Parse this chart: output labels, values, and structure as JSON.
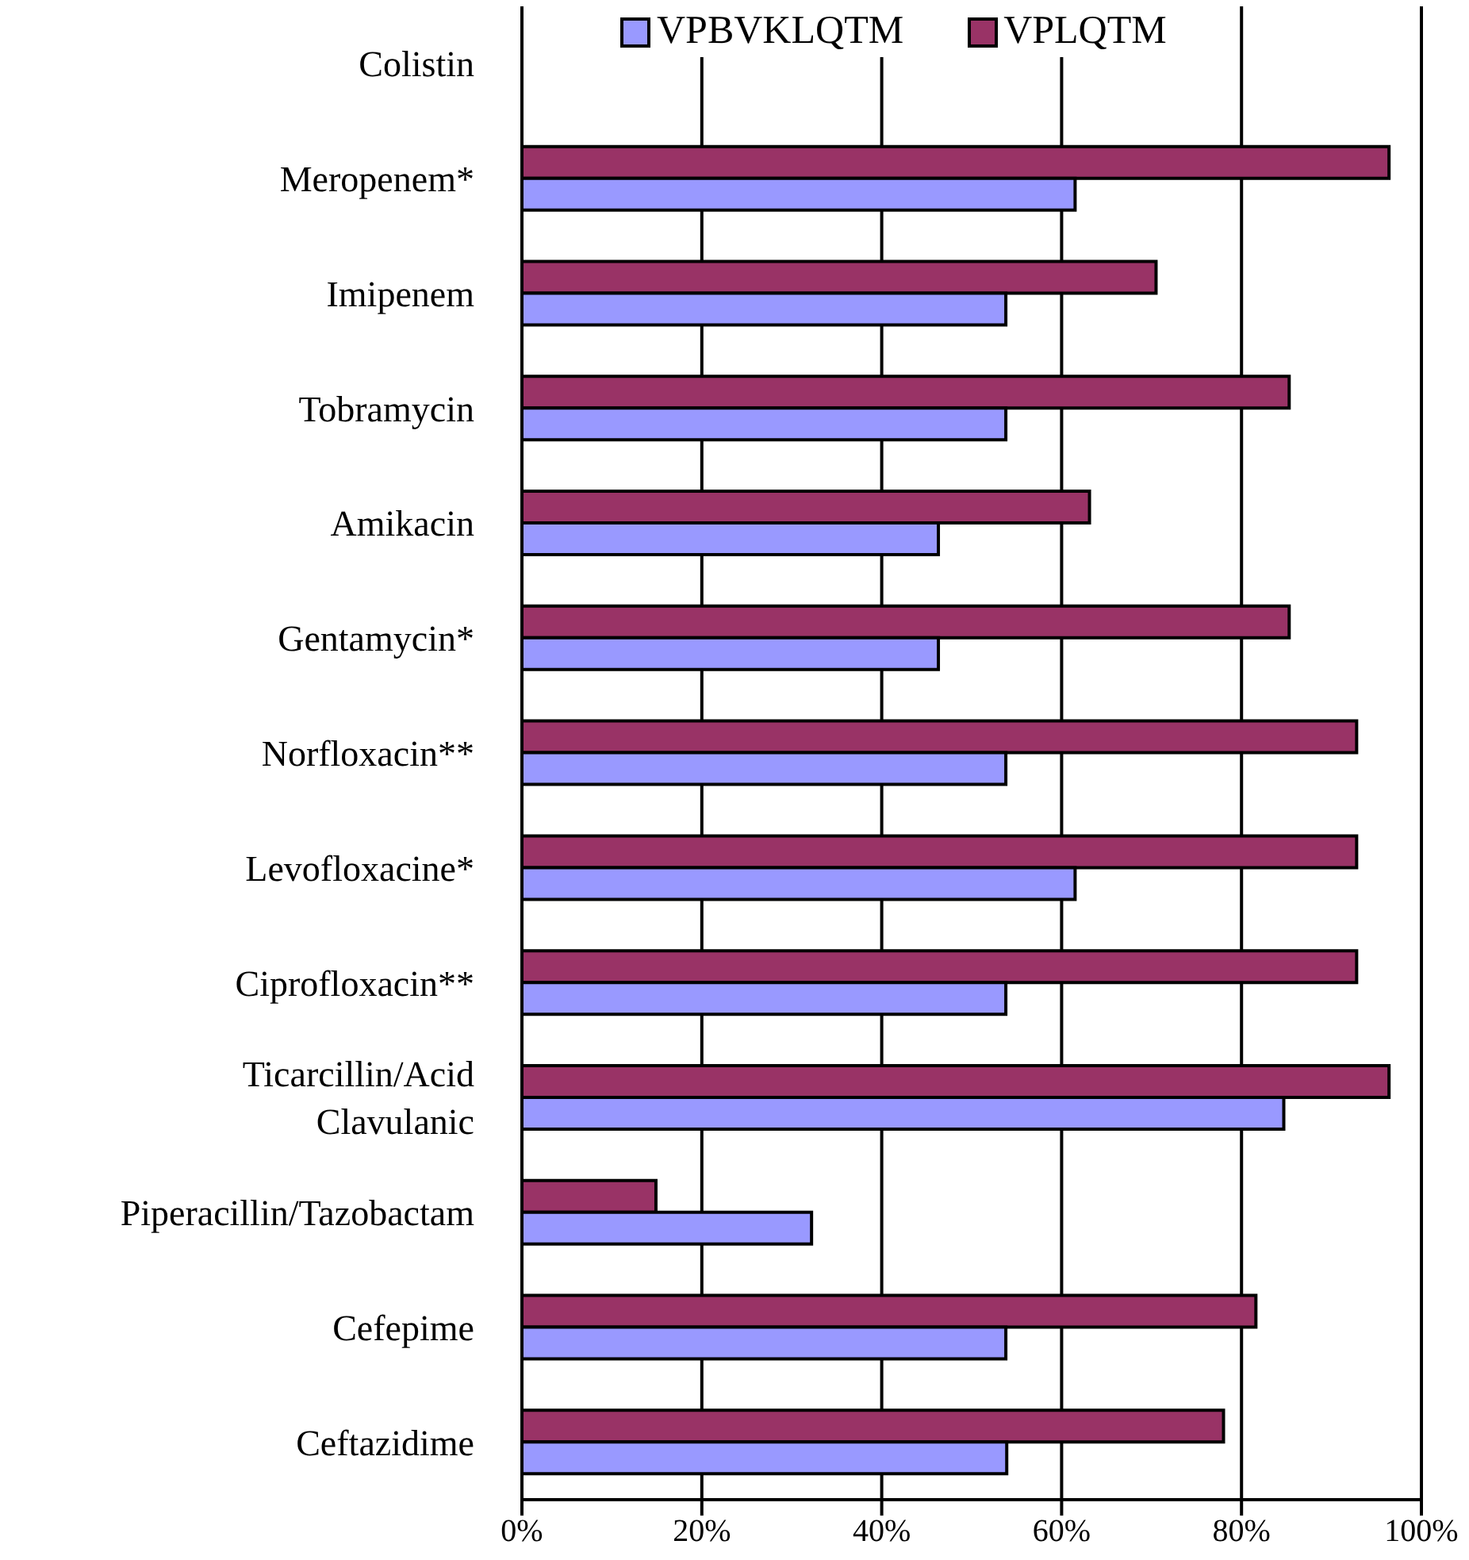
{
  "chart_data": {
    "type": "bar",
    "orientation": "horizontal",
    "categories": [
      "Colistin",
      "Meropenem*",
      "Imipenem",
      "Tobramycin",
      "Amikacin",
      "Gentamycin*",
      "Norfloxacin**",
      "Levofloxacine*",
      "Ciprofloxacin**",
      "Ticarcillin/Acid Clavulanic",
      "Piperacillin/Tazobactam",
      "Cefepime",
      "Ceftazidime"
    ],
    "series": [
      {
        "name": "VPBVKLQTM",
        "color": "#9999ff",
        "values": [
          0,
          61.5,
          53.8,
          53.8,
          46.3,
          46.3,
          53.8,
          61.5,
          53.8,
          84.7,
          32.2,
          53.8,
          53.9
        ]
      },
      {
        "name": "VPLQTM",
        "color": "#993366",
        "values": [
          0,
          96.4,
          70.5,
          85.3,
          63.1,
          85.3,
          92.8,
          92.8,
          92.8,
          96.4,
          14.9,
          81.6,
          78.0
        ]
      }
    ],
    "xlim": [
      0,
      100
    ],
    "xticks": [
      {
        "value": 0,
        "label": "0%"
      },
      {
        "value": 20,
        "label": "20%"
      },
      {
        "value": 40,
        "label": "40%"
      },
      {
        "value": 60,
        "label": "60%"
      },
      {
        "value": 80,
        "label": "80%"
      },
      {
        "value": 100,
        "label": "100%"
      }
    ],
    "grid": "x",
    "legend": "top"
  }
}
